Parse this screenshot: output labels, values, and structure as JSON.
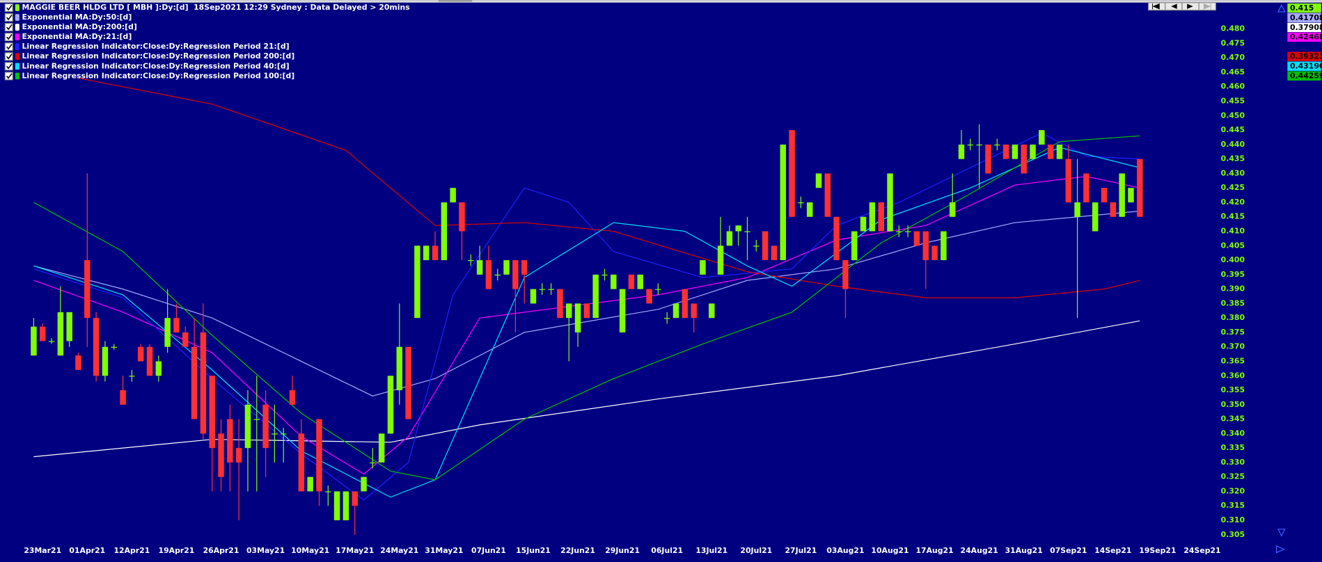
{
  "chart_data": {
    "type": "candlestick",
    "title": "MAGGIE BEER HLDG LTD [ MBH ]:Dy:[d]  18Sep2021 12:29 Sydney : Data Delayed > 20mins",
    "categories": [
      null,
      "23Mar21",
      null,
      null,
      null,
      null,
      "01Apr21",
      null,
      null,
      null,
      null,
      "12Apr21",
      null,
      null,
      null,
      null,
      "19Apr21",
      null,
      null,
      null,
      null,
      "26Apr21",
      null,
      null,
      null,
      null,
      "03May21",
      null,
      null,
      null,
      null,
      "10May21",
      null,
      null,
      null,
      null,
      "17May21",
      null,
      null,
      null,
      null,
      "24May21",
      null,
      null,
      null,
      null,
      "31May21",
      null,
      null,
      null,
      null,
      "07Jun21",
      null,
      null,
      null,
      null,
      "15Jun21",
      null,
      null,
      null,
      null,
      "22Jun21",
      null,
      null,
      null,
      null,
      "29Jun21",
      null,
      null,
      null,
      null,
      "06Jul21",
      null,
      null,
      null,
      null,
      "13Jul21",
      null,
      null,
      null,
      null,
      "20Jul21",
      null,
      null,
      null,
      null,
      "27Jul21",
      null,
      null,
      null,
      null,
      "03Aug21",
      null,
      null,
      null,
      null,
      "10Aug21",
      null,
      null,
      null,
      null,
      "17Aug21",
      null,
      null,
      null,
      null,
      "24Aug21",
      null,
      null,
      null,
      null,
      "31Aug21",
      null,
      null,
      null,
      null,
      "07Sep21",
      null,
      null,
      null,
      null,
      "14Sep21",
      null,
      null,
      null,
      null,
      "19Sep21",
      null,
      null,
      null,
      null,
      "24Sep21"
    ],
    "open": [
      0.367,
      0.377,
      0.372,
      0.367,
      0.372,
      0.367,
      0.4,
      0.38,
      0.36,
      0.37,
      0.355,
      0.36,
      0.37,
      0.37,
      0.36,
      0.37,
      0.38,
      0.375,
      0.37,
      0.375,
      0.36,
      0.34,
      0.345,
      0.335,
      0.335,
      0.345,
      0.35,
      0.34,
      0.34,
      0.355,
      0.34,
      0.32,
      0.345,
      0.32,
      0.31,
      0.31,
      0.32,
      0.32,
      0.33,
      0.33,
      0.34,
      0.355,
      0.37,
      0.38,
      0.4,
      0.405,
      0.4,
      0.42,
      0.42,
      0.4,
      0.395,
      0.4,
      0.395,
      0.395,
      0.4,
      0.4,
      0.385,
      0.39,
      0.39,
      0.39,
      0.38,
      0.375,
      0.385,
      0.38,
      0.395,
      0.39,
      0.375,
      0.395,
      0.39,
      0.39,
      0.39,
      0.38,
      0.38,
      0.39,
      0.385,
      0.395,
      0.38,
      0.395,
      0.405,
      0.41,
      0.41,
      0.405,
      0.41,
      0.405,
      0.4,
      0.445,
      0.42,
      0.415,
      0.425,
      0.43,
      0.415,
      0.4,
      0.4,
      0.41,
      0.41,
      0.42,
      0.41,
      0.41,
      0.41,
      0.41,
      0.41,
      0.405,
      0.4,
      0.415,
      0.435,
      0.44,
      0.44,
      0.44,
      0.44,
      0.44,
      0.435,
      0.44,
      0.435,
      0.44,
      0.44,
      0.435,
      0.435,
      0.415,
      0.43,
      0.41,
      0.425,
      0.42,
      0.415,
      0.42,
      0.435,
      null,
      null,
      null,
      null,
      null,
      null,
      null
    ],
    "high": [
      0.38,
      0.378,
      0.373,
      0.391,
      0.382,
      0.368,
      0.43,
      0.382,
      0.372,
      0.371,
      0.36,
      0.362,
      0.371,
      0.371,
      0.367,
      0.39,
      0.385,
      0.377,
      0.38,
      0.385,
      0.36,
      0.345,
      0.35,
      0.345,
      0.355,
      0.36,
      0.355,
      0.35,
      0.342,
      0.36,
      0.345,
      0.325,
      0.345,
      0.322,
      0.32,
      0.32,
      0.32,
      0.325,
      0.335,
      0.34,
      0.36,
      0.385,
      0.37,
      0.405,
      0.405,
      0.41,
      0.42,
      0.425,
      0.42,
      0.402,
      0.405,
      0.405,
      0.397,
      0.4,
      0.4,
      0.4,
      0.39,
      0.392,
      0.392,
      0.39,
      0.385,
      0.385,
      0.385,
      0.395,
      0.397,
      0.395,
      0.39,
      0.395,
      0.395,
      0.39,
      0.392,
      0.382,
      0.385,
      0.39,
      0.385,
      0.4,
      0.385,
      0.415,
      0.412,
      0.412,
      0.415,
      0.407,
      0.41,
      0.405,
      0.44,
      0.445,
      0.422,
      0.42,
      0.43,
      0.43,
      0.415,
      0.4,
      0.41,
      0.415,
      0.42,
      0.42,
      0.43,
      0.412,
      0.412,
      0.41,
      0.41,
      0.405,
      0.41,
      0.43,
      0.445,
      0.442,
      0.447,
      0.44,
      0.442,
      0.44,
      0.44,
      0.44,
      0.44,
      0.445,
      0.44,
      0.44,
      0.44,
      0.435,
      0.43,
      0.42,
      0.425,
      0.42,
      0.43,
      0.425,
      0.435,
      null,
      null,
      null,
      null,
      null,
      null,
      null
    ],
    "low": [
      0.367,
      0.372,
      0.371,
      0.367,
      0.37,
      0.362,
      0.37,
      0.358,
      0.358,
      0.369,
      0.35,
      0.358,
      0.365,
      0.36,
      0.358,
      0.368,
      0.375,
      0.37,
      0.345,
      0.338,
      0.32,
      0.32,
      0.32,
      0.31,
      0.32,
      0.32,
      0.325,
      0.33,
      0.33,
      0.35,
      0.32,
      0.32,
      0.315,
      0.315,
      0.31,
      0.31,
      0.305,
      0.32,
      0.328,
      0.33,
      0.34,
      0.35,
      0.345,
      0.38,
      0.4,
      0.4,
      0.4,
      0.42,
      0.4,
      0.398,
      0.395,
      0.39,
      0.393,
      0.395,
      0.375,
      0.385,
      0.385,
      0.388,
      0.388,
      0.38,
      0.365,
      0.37,
      0.38,
      0.38,
      0.393,
      0.39,
      0.375,
      0.39,
      0.39,
      0.385,
      0.388,
      0.378,
      0.38,
      0.38,
      0.375,
      0.395,
      0.38,
      0.395,
      0.405,
      0.405,
      0.4,
      0.403,
      0.4,
      0.4,
      0.4,
      0.415,
      0.418,
      0.415,
      0.425,
      0.415,
      0.4,
      0.38,
      0.4,
      0.41,
      0.41,
      0.41,
      0.41,
      0.408,
      0.408,
      0.405,
      0.39,
      0.4,
      0.4,
      0.415,
      0.435,
      0.438,
      0.425,
      0.43,
      0.438,
      0.435,
      0.435,
      0.43,
      0.435,
      0.44,
      0.435,
      0.435,
      0.42,
      0.38,
      0.42,
      0.41,
      0.42,
      0.415,
      0.415,
      0.42,
      0.415,
      null,
      null,
      null,
      null,
      null,
      null,
      null
    ],
    "close": [
      0.377,
      0.372,
      0.372,
      0.382,
      0.382,
      0.362,
      0.38,
      0.36,
      0.37,
      0.37,
      0.35,
      0.36,
      0.365,
      0.36,
      0.365,
      0.38,
      0.375,
      0.37,
      0.345,
      0.34,
      0.335,
      0.325,
      0.33,
      0.33,
      0.35,
      0.345,
      0.335,
      0.34,
      0.34,
      0.35,
      0.32,
      0.325,
      0.32,
      0.32,
      0.32,
      0.32,
      0.315,
      0.325,
      0.33,
      0.34,
      0.36,
      0.37,
      0.345,
      0.405,
      0.405,
      0.4,
      0.42,
      0.425,
      0.41,
      0.4,
      0.4,
      0.39,
      0.395,
      0.4,
      0.39,
      0.395,
      0.39,
      0.39,
      0.39,
      0.38,
      0.385,
      0.385,
      0.38,
      0.395,
      0.395,
      0.395,
      0.39,
      0.39,
      0.395,
      0.385,
      0.39,
      0.38,
      0.385,
      0.38,
      0.38,
      0.4,
      0.385,
      0.405,
      0.41,
      0.412,
      0.41,
      0.405,
      0.4,
      0.4,
      0.44,
      0.415,
      0.42,
      0.42,
      0.43,
      0.415,
      0.4,
      0.39,
      0.41,
      0.415,
      0.42,
      0.41,
      0.43,
      0.41,
      0.41,
      0.405,
      0.4,
      0.4,
      0.41,
      0.42,
      0.44,
      0.44,
      0.44,
      0.43,
      0.44,
      0.435,
      0.44,
      0.43,
      0.44,
      0.445,
      0.435,
      0.44,
      0.42,
      0.42,
      0.42,
      0.42,
      0.42,
      0.415,
      0.43,
      0.425,
      0.415,
      null,
      null,
      null,
      null,
      null,
      null,
      null
    ],
    "up_color": "#80ff00",
    "down_color": "#ff3030",
    "last_value": 0.415,
    "series": [
      {
        "name": "Exponential MA:Dy:50:[d]",
        "color": "#a8a8ff",
        "x": [
          0,
          10,
          20,
          30,
          38,
          45,
          55,
          70,
          80,
          90,
          100,
          110,
          124
        ],
        "values": [
          0.398,
          0.39,
          0.38,
          0.365,
          0.353,
          0.359,
          0.375,
          0.383,
          0.393,
          0.397,
          0.406,
          0.413,
          0.417
        ],
        "last": 0.41708
      },
      {
        "name": "Exponential MA:Dy:200:[d]",
        "color": "#ffffff",
        "x": [
          0,
          20,
          40,
          50,
          70,
          90,
          110,
          124
        ],
        "values": [
          0.332,
          0.338,
          0.337,
          0.343,
          0.352,
          0.36,
          0.371,
          0.379
        ],
        "last": 0.379086
      },
      {
        "name": "Exponential MA:Dy:21:[d]",
        "color": "#ff00ff",
        "x": [
          0,
          10,
          20,
          30,
          37,
          42,
          50,
          60,
          70,
          80,
          90,
          100,
          110,
          118,
          124
        ],
        "values": [
          0.393,
          0.382,
          0.368,
          0.339,
          0.326,
          0.339,
          0.38,
          0.384,
          0.388,
          0.394,
          0.407,
          0.412,
          0.426,
          0.429,
          0.425
        ],
        "last": 0.424686
      },
      {
        "name": "Linear Regression Indicator:Close:Dy:Regression Period 21:[d]",
        "color": "#2020ff",
        "x": [
          0,
          10,
          20,
          30,
          37,
          42,
          47,
          55,
          60,
          65,
          75,
          85,
          90,
          97,
          105,
          113,
          118,
          124
        ],
        "values": [
          0.397,
          0.387,
          0.359,
          0.333,
          0.317,
          0.33,
          0.388,
          0.425,
          0.42,
          0.403,
          0.394,
          0.397,
          0.412,
          0.42,
          0.432,
          0.444,
          0.436,
          0.435
        ]
      },
      {
        "name": "Linear Regression Indicator:Close:Dy:Regression Period 200:[d]",
        "color": "#e00000",
        "x": [
          5,
          20,
          35,
          45,
          55,
          65,
          80,
          90,
          100,
          110,
          120,
          124
        ],
        "values": [
          0.463,
          0.454,
          0.438,
          0.412,
          0.413,
          0.41,
          0.396,
          0.391,
          0.387,
          0.387,
          0.39,
          0.393
        ],
        "last": 0.393233
      },
      {
        "name": "Linear Regression Indicator:Close:Dy:Regression Period 40:[d]",
        "color": "#00e0ff",
        "x": [
          0,
          10,
          20,
          30,
          40,
          45,
          50,
          55,
          65,
          73,
          80,
          85,
          95,
          105,
          115,
          124
        ],
        "values": [
          0.398,
          0.388,
          0.362,
          0.334,
          0.318,
          0.324,
          0.359,
          0.394,
          0.413,
          0.41,
          0.398,
          0.391,
          0.414,
          0.425,
          0.439,
          0.432
        ],
        "last": 0.431902
      },
      {
        "name": "Linear Regression Indicator:Close:Dy:Regression Period 100:[d]",
        "color": "#00c000",
        "x": [
          0,
          10,
          20,
          30,
          40,
          45,
          55,
          65,
          75,
          85,
          95,
          105,
          115,
          124
        ],
        "values": [
          0.42,
          0.403,
          0.374,
          0.347,
          0.327,
          0.324,
          0.345,
          0.359,
          0.371,
          0.382,
          0.406,
          0.423,
          0.441,
          0.443
        ],
        "last": 0.442599
      }
    ],
    "ylim": [
      0.302,
      0.49
    ],
    "yticks": [
      0.305,
      {
        "value": 0.31,
        "label": "0.310"
      },
      0.315,
      {
        "value": 0.32,
        "label": "0.320"
      },
      0.325,
      {
        "value": 0.33,
        "label": "0.330"
      },
      0.335,
      {
        "value": 0.34,
        "label": "0.340"
      },
      0.345,
      {
        "value": 0.35,
        "label": "0.350"
      },
      0.355,
      {
        "value": 0.36,
        "label": "0.360"
      },
      0.365,
      {
        "value": 0.37,
        "label": "0.370"
      },
      0.375,
      {
        "value": 0.38,
        "label": "0.380"
      },
      0.385,
      {
        "value": 0.39,
        "label": "0.390"
      },
      0.395,
      {
        "value": 0.4,
        "label": "0.400"
      },
      0.405,
      {
        "value": 0.41,
        "label": "0.410"
      },
      0.415,
      {
        "value": 0.42,
        "label": "0.420"
      },
      0.425,
      {
        "value": 0.43,
        "label": "0.430"
      },
      0.435,
      {
        "value": 0.44,
        "label": "0.440"
      },
      0.445,
      {
        "value": 0.45,
        "label": "0.450"
      },
      0.455,
      {
        "value": 0.46,
        "label": "0.460"
      },
      0.465,
      {
        "value": 0.47,
        "label": "0.470"
      },
      0.475,
      {
        "value": 0.48,
        "label": "0.480"
      }
    ],
    "grid": false
  }
}
